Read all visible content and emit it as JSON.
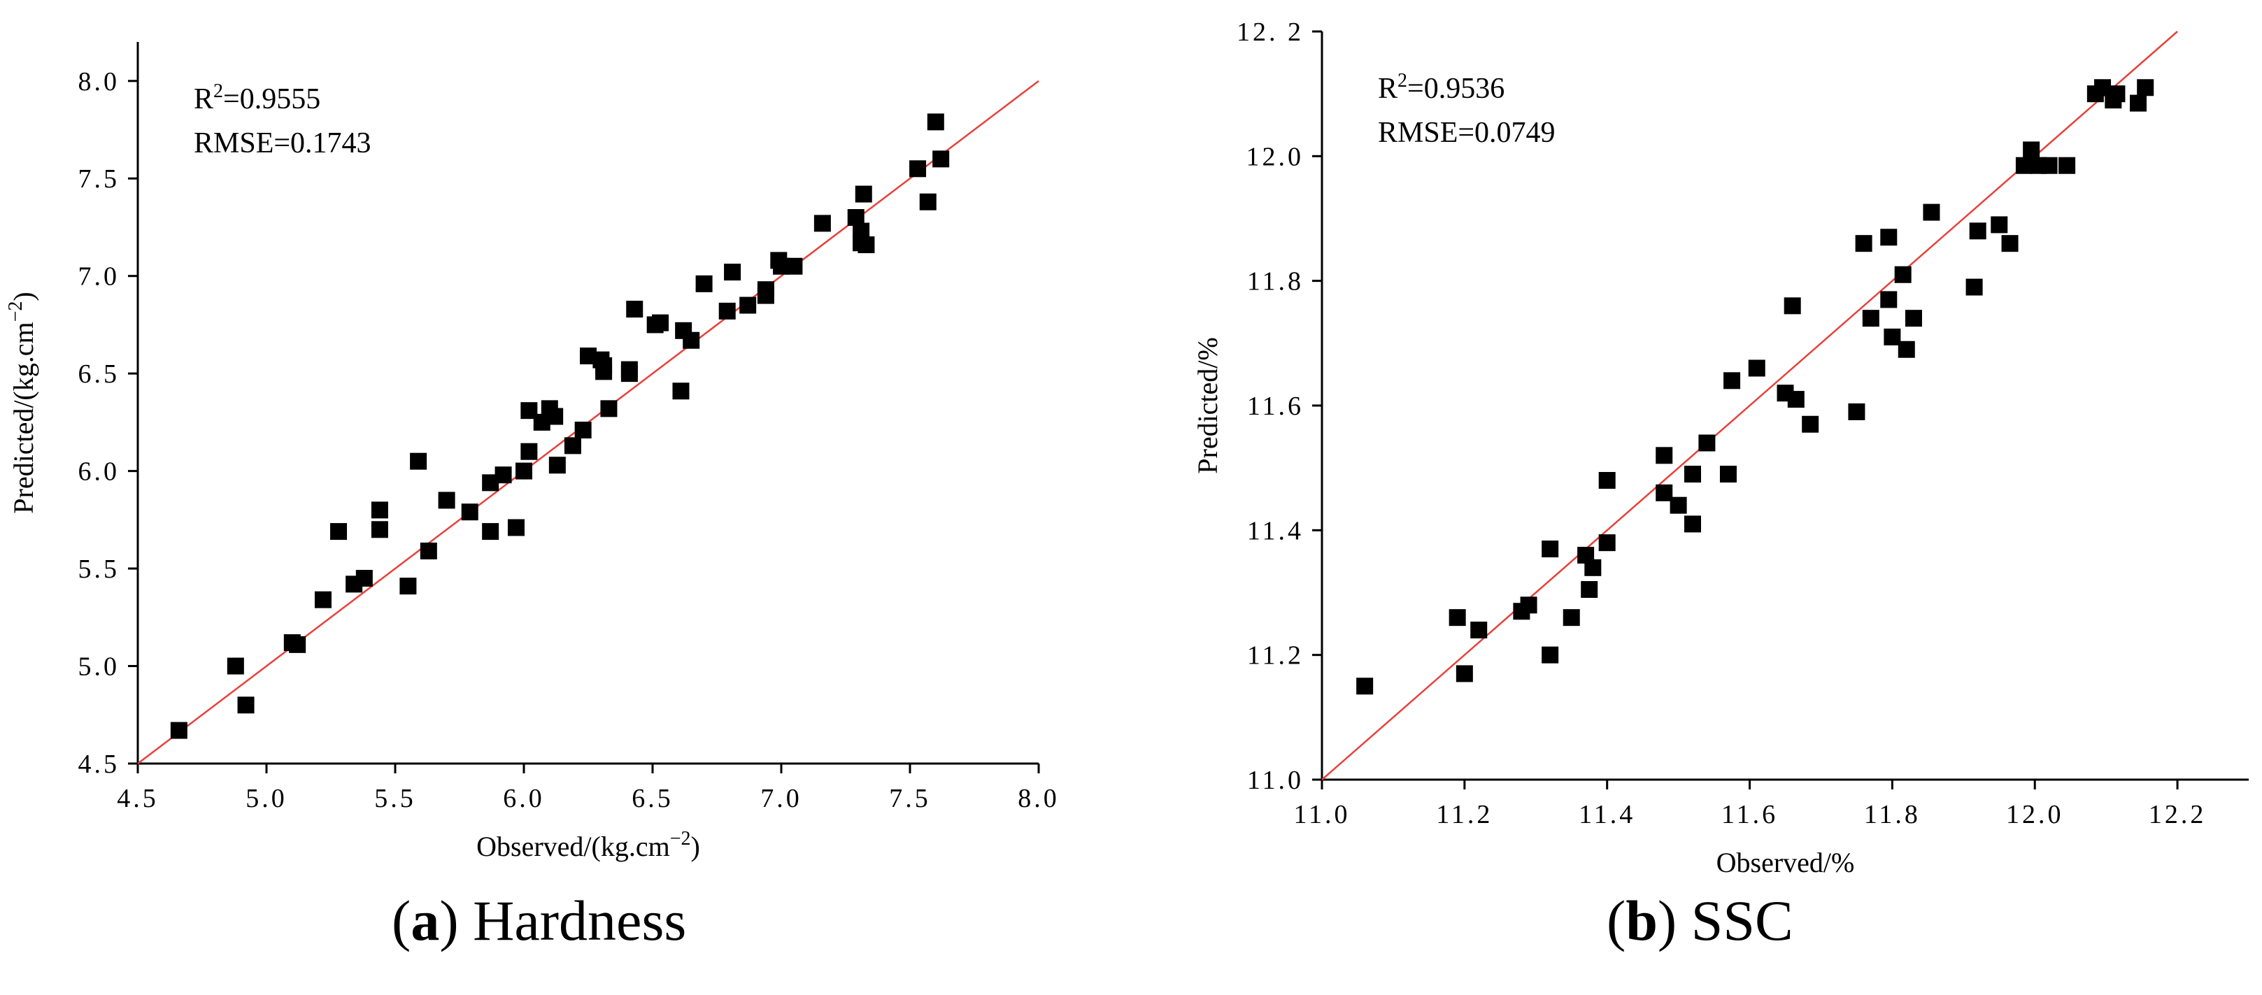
{
  "figure": {
    "caption_a": {
      "letter": "a",
      "text": "Hardness"
    },
    "caption_b": {
      "letter": "b",
      "text": "SSC"
    }
  },
  "colors": {
    "points": "#000000",
    "fit_line": "#e8413b",
    "axis": "#000000"
  },
  "chart_data": [
    {
      "id": "hardness",
      "type": "scatter",
      "title": "",
      "xlabel": "Observed/(kg.cm",
      "xlabel_sup": "−2",
      "xlabel_tail": ")",
      "ylabel": "Predicted/(kg.cm",
      "ylabel_sup": "−2",
      "ylabel_tail": ")",
      "xlim": [
        4.5,
        8.0
      ],
      "ylim": [
        4.5,
        8.2
      ],
      "xticks": [
        4.5,
        5.0,
        5.5,
        6.0,
        6.5,
        7.0,
        7.5,
        8.0
      ],
      "xtick_labels": [
        "4.5",
        "5.0",
        "5.5",
        "6.0",
        "6.5",
        "7.0",
        "7.5",
        "8.0"
      ],
      "yticks": [
        4.5,
        5.0,
        5.5,
        6.0,
        6.5,
        7.0,
        7.5,
        8.0
      ],
      "ytick_labels": [
        "4.5",
        "5.0",
        "5.5",
        "6.0",
        "6.5",
        "7.0",
        "7.5",
        "8.0"
      ],
      "annotations": {
        "r2_prefix": "R",
        "r2_sup": "2",
        "r2_value": "=0.9555",
        "rmse": "RMSE=0.1743"
      },
      "fit_line": {
        "from": [
          4.5,
          4.5
        ],
        "to": [
          8.0,
          8.0
        ]
      },
      "grid": false,
      "points": [
        [
          4.66,
          4.67
        ],
        [
          4.88,
          5.0
        ],
        [
          4.92,
          4.8
        ],
        [
          5.1,
          5.12
        ],
        [
          5.12,
          5.11
        ],
        [
          5.22,
          5.34
        ],
        [
          5.28,
          5.69
        ],
        [
          5.34,
          5.42
        ],
        [
          5.38,
          5.45
        ],
        [
          5.44,
          5.8
        ],
        [
          5.44,
          5.7
        ],
        [
          5.55,
          5.41
        ],
        [
          5.59,
          6.05
        ],
        [
          5.63,
          5.59
        ],
        [
          5.7,
          5.85
        ],
        [
          5.79,
          5.79
        ],
        [
          5.87,
          5.94
        ],
        [
          5.87,
          5.69
        ],
        [
          5.92,
          5.98
        ],
        [
          5.97,
          5.71
        ],
        [
          6.0,
          6.0
        ],
        [
          6.02,
          6.1
        ],
        [
          6.02,
          6.31
        ],
        [
          6.07,
          6.25
        ],
        [
          6.1,
          6.32
        ],
        [
          6.12,
          6.28
        ],
        [
          6.13,
          6.03
        ],
        [
          6.19,
          6.13
        ],
        [
          6.23,
          6.21
        ],
        [
          6.25,
          6.59
        ],
        [
          6.3,
          6.57
        ],
        [
          6.31,
          6.54
        ],
        [
          6.31,
          6.51
        ],
        [
          6.33,
          6.32
        ],
        [
          6.41,
          6.52
        ],
        [
          6.41,
          6.5
        ],
        [
          6.43,
          6.83
        ],
        [
          6.51,
          6.75
        ],
        [
          6.53,
          6.76
        ],
        [
          6.61,
          6.41
        ],
        [
          6.62,
          6.72
        ],
        [
          6.65,
          6.67
        ],
        [
          6.7,
          6.96
        ],
        [
          6.79,
          6.82
        ],
        [
          6.81,
          7.02
        ],
        [
          6.87,
          6.85
        ],
        [
          6.94,
          6.93
        ],
        [
          6.94,
          6.9
        ],
        [
          6.99,
          7.08
        ],
        [
          7.0,
          7.05
        ],
        [
          7.05,
          7.05
        ],
        [
          7.16,
          7.27
        ],
        [
          7.29,
          7.3
        ],
        [
          7.31,
          7.23
        ],
        [
          7.31,
          7.17
        ],
        [
          7.32,
          7.42
        ],
        [
          7.33,
          7.16
        ],
        [
          7.53,
          7.55
        ],
        [
          7.57,
          7.38
        ],
        [
          7.6,
          7.79
        ],
        [
          7.62,
          7.6
        ]
      ]
    },
    {
      "id": "ssc",
      "type": "scatter",
      "title": "",
      "xlabel": "Observed/%",
      "ylabel": "Predicted/%",
      "xlim": [
        11.0,
        12.3
      ],
      "ylim": [
        11.0,
        12.2
      ],
      "xticks": [
        11.0,
        11.2,
        11.4,
        11.6,
        11.8,
        12.0,
        12.2
      ],
      "xtick_labels": [
        "11.0",
        "11.2",
        "11.4",
        "11.6",
        "11.8",
        "12.0",
        "12.2"
      ],
      "yticks": [
        11.0,
        11.2,
        11.4,
        11.6,
        11.8,
        12.0,
        12.2
      ],
      "ytick_labels": [
        "11.0",
        "11.2",
        "11.4",
        "11.6",
        "11.8",
        "12.0",
        "12. 2"
      ],
      "annotations": {
        "r2_prefix": "R",
        "r2_sup": "2",
        "r2_value": "=0.9536",
        "rmse": "RMSE=0.0749"
      },
      "fit_line": {
        "from": [
          11.0,
          11.0
        ],
        "to": [
          12.2,
          12.2
        ]
      },
      "grid": false,
      "points": [
        [
          11.06,
          11.15
        ],
        [
          11.19,
          11.26
        ],
        [
          11.2,
          11.17
        ],
        [
          11.22,
          11.24
        ],
        [
          11.28,
          11.27
        ],
        [
          11.29,
          11.28
        ],
        [
          11.32,
          11.37
        ],
        [
          11.32,
          11.2
        ],
        [
          11.35,
          11.26
        ],
        [
          11.37,
          11.36
        ],
        [
          11.375,
          11.305
        ],
        [
          11.38,
          11.34
        ],
        [
          11.4,
          11.38
        ],
        [
          11.4,
          11.48
        ],
        [
          11.48,
          11.46
        ],
        [
          11.48,
          11.52
        ],
        [
          11.5,
          11.44
        ],
        [
          11.52,
          11.41
        ],
        [
          11.52,
          11.49
        ],
        [
          11.54,
          11.54
        ],
        [
          11.57,
          11.49
        ],
        [
          11.575,
          11.64
        ],
        [
          11.61,
          11.66
        ],
        [
          11.65,
          11.62
        ],
        [
          11.66,
          11.76
        ],
        [
          11.665,
          11.61
        ],
        [
          11.685,
          11.57
        ],
        [
          11.75,
          11.59
        ],
        [
          11.76,
          11.86
        ],
        [
          11.77,
          11.74
        ],
        [
          11.795,
          11.87
        ],
        [
          11.795,
          11.77
        ],
        [
          11.8,
          11.71
        ],
        [
          11.815,
          11.81
        ],
        [
          11.82,
          11.69
        ],
        [
          11.83,
          11.74
        ],
        [
          11.855,
          11.91
        ],
        [
          11.915,
          11.79
        ],
        [
          11.92,
          11.88
        ],
        [
          11.95,
          11.89
        ],
        [
          11.965,
          11.86
        ],
        [
          11.985,
          11.985
        ],
        [
          11.995,
          12.01
        ],
        [
          12.005,
          11.985
        ],
        [
          12.02,
          11.985
        ],
        [
          12.045,
          11.985
        ],
        [
          12.085,
          12.1
        ],
        [
          12.095,
          12.11
        ],
        [
          12.11,
          12.09
        ],
        [
          12.115,
          12.1
        ],
        [
          12.145,
          12.085
        ],
        [
          12.155,
          12.11
        ]
      ]
    }
  ]
}
